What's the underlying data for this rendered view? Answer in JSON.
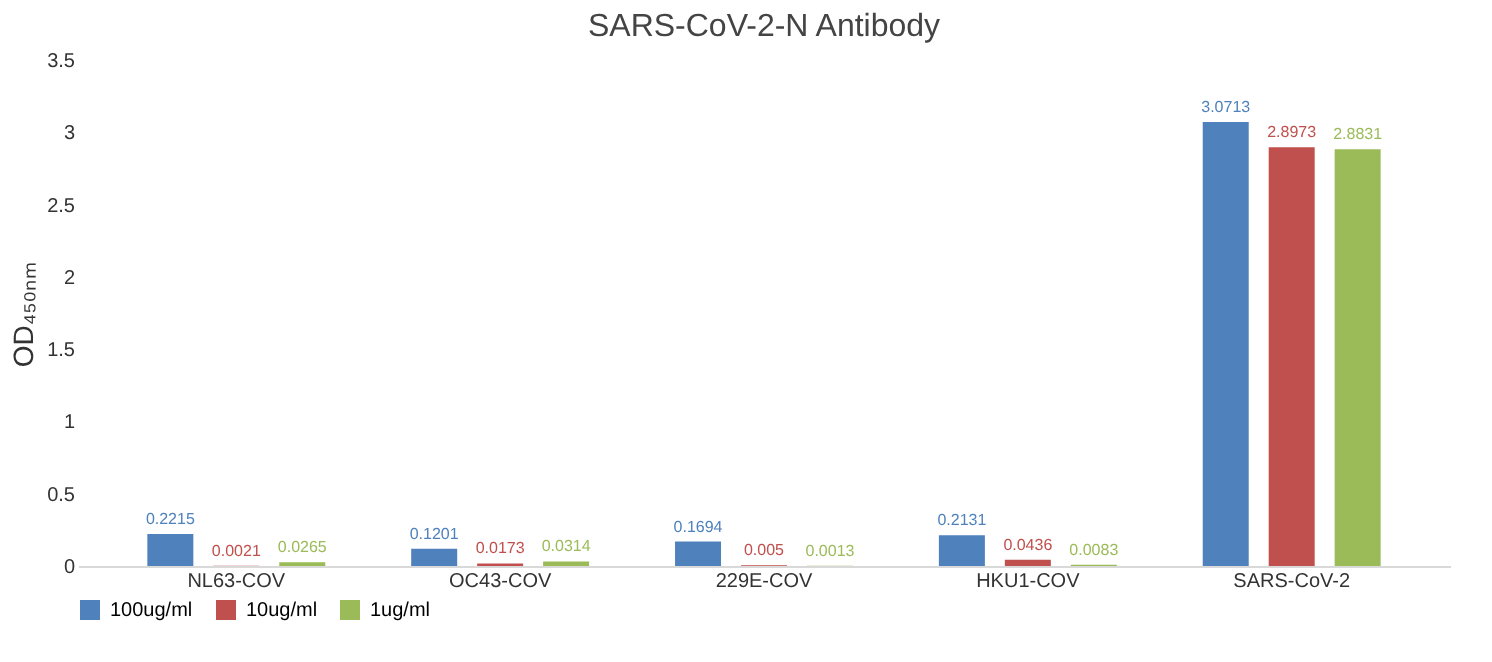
{
  "chart_data": {
    "type": "bar",
    "title": "SARS-CoV-2-N Antibody",
    "ylabel": "OD₄₅₀ₙₘ",
    "categories": [
      "NL63-COV",
      "OC43-COV",
      "229E-COV",
      "HKU1-COV",
      "SARS-CoV-2"
    ],
    "series": [
      {
        "name": "100ug/ml",
        "color": "#4f81bd",
        "values": [
          0.2215,
          0.1201,
          0.1694,
          0.2131,
          3.0713
        ]
      },
      {
        "name": "10ug/ml",
        "color": "#c0504d",
        "values": [
          0.0021,
          0.0173,
          0.005,
          0.0436,
          2.8973
        ]
      },
      {
        "name": "1ug/ml",
        "color": "#9bbb59",
        "values": [
          0.0265,
          0.0314,
          0.0013,
          0.0083,
          2.8831
        ]
      }
    ],
    "ylim": [
      0,
      3.5
    ],
    "yticks": [
      0,
      0.5,
      1,
      1.5,
      2,
      2.5,
      3,
      3.5
    ],
    "grid": false,
    "legend": "bottom",
    "data_labels": true
  }
}
